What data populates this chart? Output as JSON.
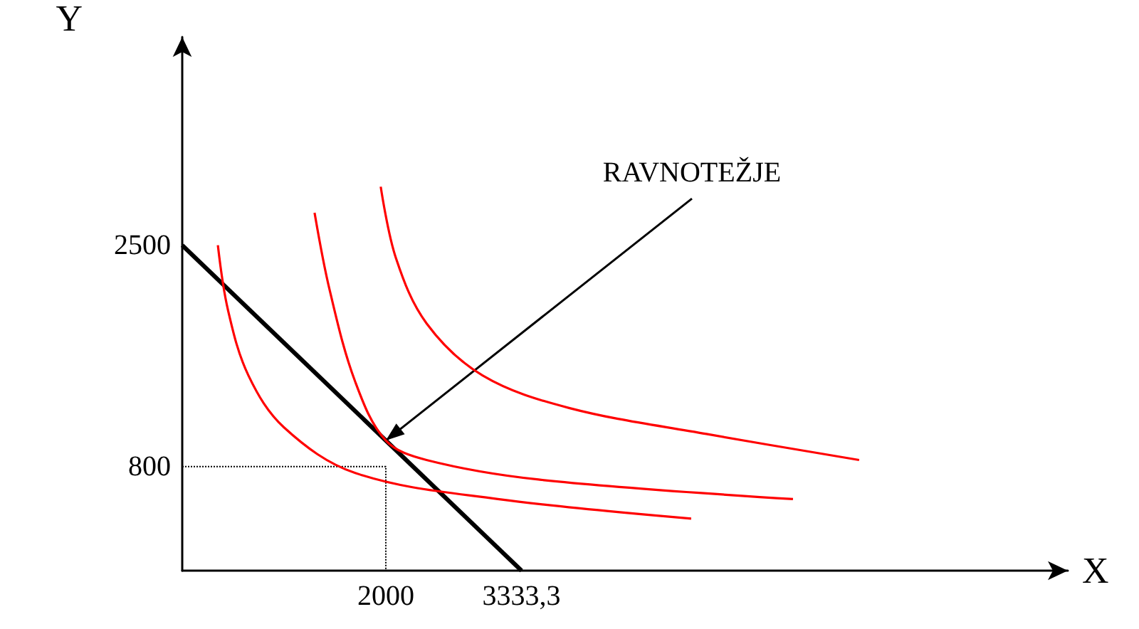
{
  "chart_data": {
    "type": "line",
    "xlabel": "X",
    "ylabel": "Y",
    "xlim": [
      0,
      8700
    ],
    "ylim": [
      0,
      4100
    ],
    "xticks": [
      2000,
      {
        "value": 3333.3,
        "label": "3333,3"
      }
    ],
    "yticks": [
      800,
      2500
    ],
    "grid": false,
    "marker": "none",
    "series": [
      {
        "color": "#000000",
        "x": [
          0,
          3333.3
        ],
        "values": [
          2500,
          0
        ]
      },
      {
        "color": "#000000",
        "line_style": "dotted",
        "x": [
          0,
          2000,
          2000
        ],
        "values": [
          800,
          800,
          0
        ]
      },
      {
        "color": "#ff0000",
        "x": [
          350,
          450,
          650,
          1000,
          1700,
          3100,
          5000
        ],
        "values": [
          2500,
          2000,
          1500,
          1100,
          750,
          550,
          400
        ]
      },
      {
        "color": "#ff0000",
        "x": [
          1300,
          1450,
          1700,
          2000,
          2400,
          3500,
          6000
        ],
        "values": [
          2750,
          2150,
          1450,
          1000,
          850,
          700,
          550
        ]
      },
      {
        "color": "#ff0000",
        "x": [
          1950,
          2100,
          2400,
          2950,
          3800,
          5150,
          6650
        ],
        "values": [
          2950,
          2400,
          1900,
          1500,
          1250,
          1050,
          850
        ]
      }
    ],
    "annotations": [
      {
        "text": "RAVNOTEŽJE",
        "x": 2000,
        "y": 1000
      }
    ]
  }
}
